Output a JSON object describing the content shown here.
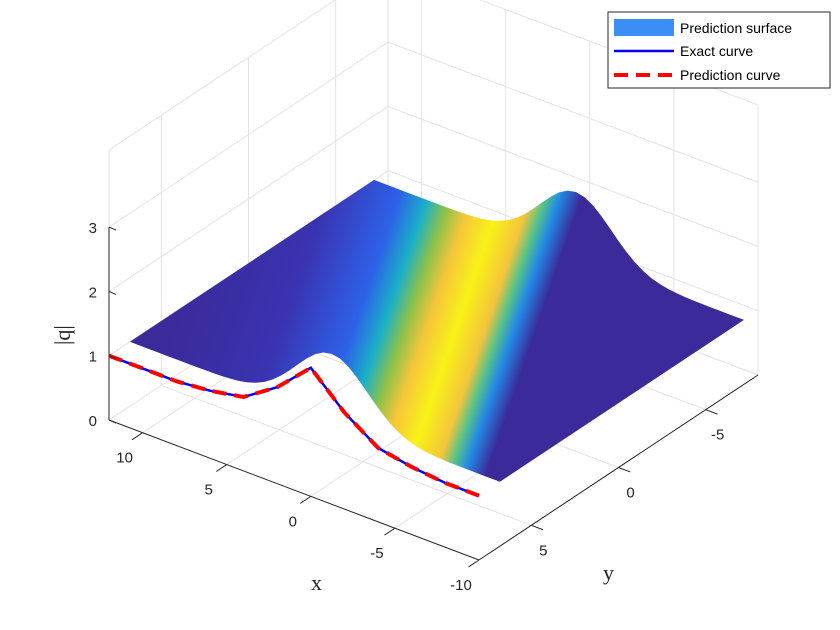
{
  "chart_data": {
    "type": "surface3d",
    "xlabel": "x",
    "ylabel": "y",
    "zlabel": "|q|",
    "xlim": [
      -10,
      12
    ],
    "ylim": [
      -8,
      8
    ],
    "zlim": [
      0,
      3
    ],
    "x_ticks": [
      10,
      5,
      0,
      -5,
      -10
    ],
    "y_ticks": [
      -5,
      0,
      5
    ],
    "z_ticks": [
      0,
      1,
      2,
      3
    ],
    "grid": true,
    "colormap": "parula",
    "legend_position": "top-right",
    "legend": [
      {
        "label": "Prediction surface",
        "style": "patch",
        "color": "#3a8ef5"
      },
      {
        "label": "Exact curve",
        "style": "solid",
        "color": "#0000ff"
      },
      {
        "label": "Prediction curve",
        "style": "dashed",
        "color": "#ff0000"
      }
    ],
    "surface": {
      "description_values": {
        "background_level": 1.0,
        "peak_level": 2.0
      },
      "ridge_along": "y",
      "ridge_center_x": 0,
      "ridge_halfwidth_x": 3
    },
    "curve_on_back_wall": {
      "x": [
        -10,
        -8,
        -6,
        -4,
        -2,
        0,
        2,
        4,
        6,
        8,
        10,
        12
      ],
      "z": [
        1.0,
        1.0,
        1.05,
        1.15,
        1.5,
        2.0,
        1.5,
        1.15,
        1.05,
        1.0,
        1.0,
        1.0
      ]
    }
  }
}
